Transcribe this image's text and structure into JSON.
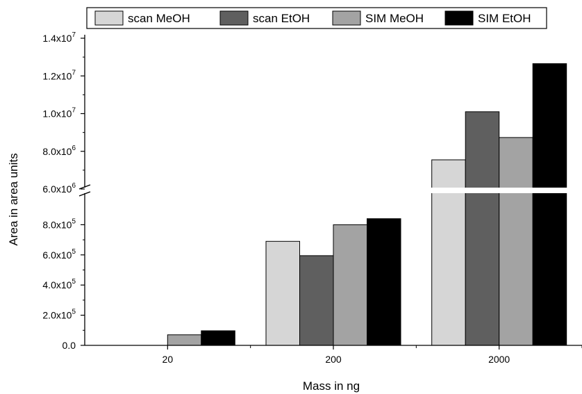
{
  "chart_data": {
    "type": "bar",
    "xlabel": "Mass in ng",
    "ylabel": "Area in area units",
    "categories": [
      "20",
      "200",
      "2000"
    ],
    "series": [
      {
        "name": "scan MeOH",
        "color": "#d6d6d6",
        "values": [
          0,
          690000,
          7550000
        ]
      },
      {
        "name": "scan EtOH",
        "color": "#5f5f5f",
        "values": [
          0,
          595000,
          10100000
        ]
      },
      {
        "name": "SIM MeOH",
        "color": "#a3a3a3",
        "values": [
          70000,
          800000,
          8730000
        ]
      },
      {
        "name": "SIM EtOH",
        "color": "#000000",
        "values": [
          97000,
          840000,
          12650000
        ]
      }
    ],
    "y_axis_break": true,
    "y_lower_segment": {
      "range": [
        0,
        1000000
      ],
      "tick_values": [
        0,
        200000,
        400000,
        600000,
        800000
      ],
      "tick_mantissas": [
        "0.0",
        "2.0x10",
        "4.0x10",
        "6.0x10",
        "8.0x10"
      ],
      "tick_exponents": [
        "",
        "5",
        "5",
        "5",
        "5"
      ]
    },
    "y_upper_segment": {
      "range": [
        6000000,
        14000000
      ],
      "tick_values": [
        6000000,
        8000000,
        10000000,
        12000000,
        14000000
      ],
      "tick_mantissas": [
        "6.0x10",
        "8.0x10",
        "1.0x10",
        "1.2x10",
        "1.4x10"
      ],
      "tick_exponents": [
        "6",
        "6",
        "7",
        "7",
        "7"
      ]
    },
    "legend_position": "top"
  }
}
